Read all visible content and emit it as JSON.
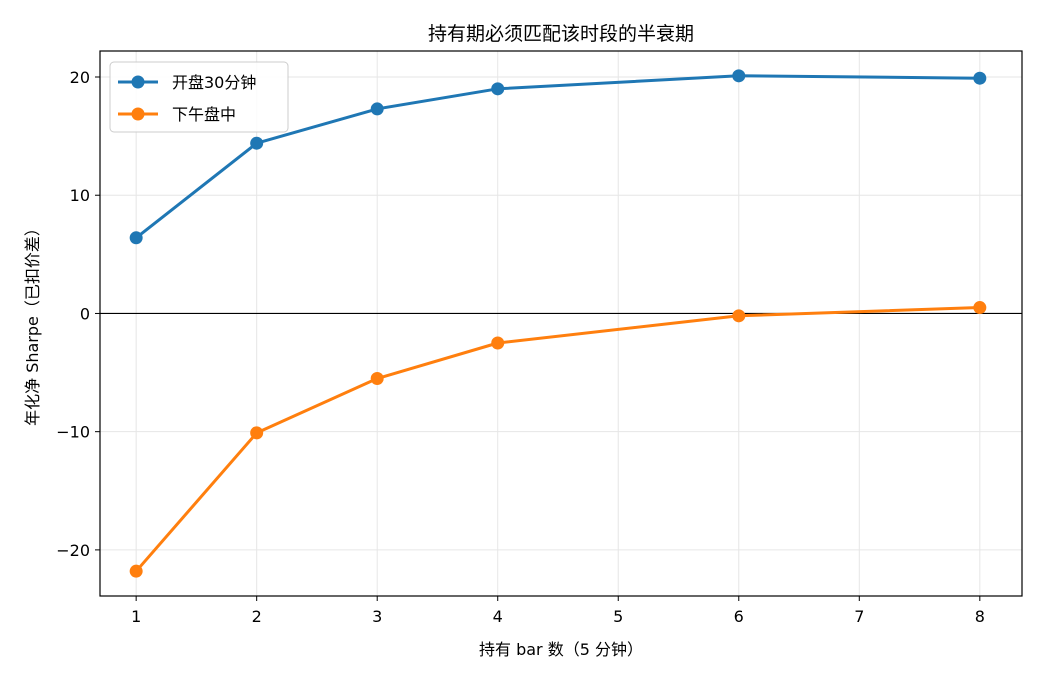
{
  "chart_data": {
    "type": "line",
    "title": "持有期必须匹配该时段的半衰期",
    "xlabel": "持有 bar 数（5 分钟）",
    "ylabel": "年化净 Sharpe（已扣价差）",
    "xlim": [
      0.7,
      8.35
    ],
    "ylim": [
      -23.9,
      22.2
    ],
    "xticks": [
      1,
      2,
      3,
      4,
      5,
      6,
      7,
      8
    ],
    "yticks": [
      -20,
      -10,
      0,
      10,
      20
    ],
    "grid": true,
    "zero_line": true,
    "legend_position": "top-left",
    "series": [
      {
        "name": "开盘30分钟",
        "color": "#1f77b4",
        "x": [
          1,
          2,
          3,
          4,
          6,
          8
        ],
        "y": [
          6.4,
          14.4,
          17.3,
          19.0,
          20.1,
          19.9
        ]
      },
      {
        "name": "下午盘中",
        "color": "#ff7f0e",
        "x": [
          1,
          2,
          3,
          4,
          6,
          8
        ],
        "y": [
          -21.8,
          -10.1,
          -5.5,
          -2.5,
          -0.2,
          0.5
        ]
      }
    ]
  }
}
